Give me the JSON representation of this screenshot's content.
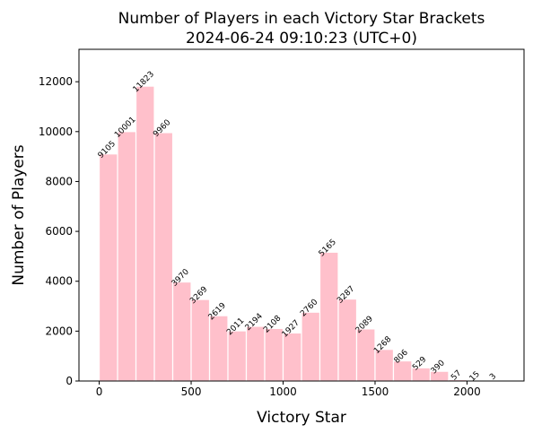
{
  "chart_data": {
    "type": "histogram",
    "title": "Number of Players in each Victory Star Brackets",
    "subtitle": "2024-06-24 09:10:23 (UTC+0)",
    "x_label": "Victory Star",
    "y_label": "Number of Players",
    "bins": [
      0,
      100,
      200,
      300,
      400,
      500,
      600,
      700,
      800,
      900,
      1000,
      1100,
      1200,
      1300,
      1400,
      1500,
      1600,
      1700,
      1800,
      1900,
      2000,
      2100,
      2200
    ],
    "values": [
      9105,
      10001,
      11823,
      9960,
      3970,
      3269,
      2619,
      2011,
      2194,
      2108,
      1927,
      2760,
      5165,
      3287,
      2089,
      1268,
      806,
      529,
      390,
      57,
      15,
      3
    ],
    "color": "#ffc0cb",
    "xlim": [
      -110,
      2310
    ],
    "ylim": [
      0,
      13300
    ],
    "xticks": [
      0,
      500,
      1000,
      1500,
      2000
    ],
    "yticks": [
      0,
      2000,
      4000,
      6000,
      8000,
      10000,
      12000
    ],
    "grid": false
  }
}
